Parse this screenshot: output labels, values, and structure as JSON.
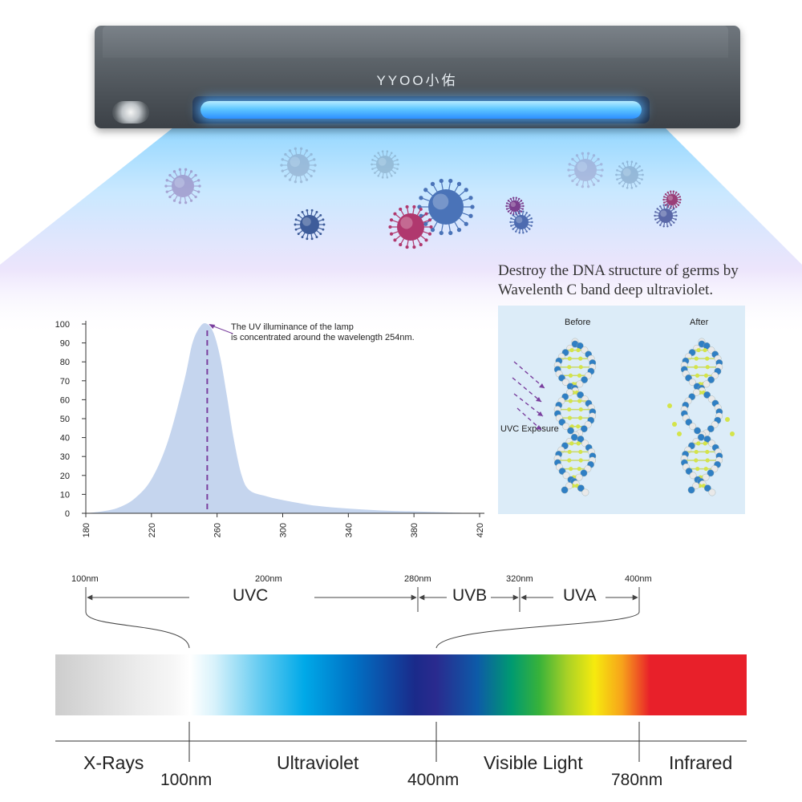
{
  "lamp": {
    "brand": "YYOO小佑"
  },
  "description": {
    "line1": "Destroy the DNA structure of germs by",
    "line2": "Wavelenth C band deep ultraviolet."
  },
  "chart_data": {
    "type": "area",
    "title": "",
    "xlabel": "",
    "ylabel": "",
    "xlim": [
      180,
      420
    ],
    "ylim": [
      0,
      100
    ],
    "x_ticks": [
      180,
      220,
      260,
      300,
      340,
      380,
      420
    ],
    "y_ticks": [
      0,
      10,
      20,
      30,
      40,
      50,
      60,
      70,
      80,
      90,
      100
    ],
    "x": [
      180,
      190,
      200,
      210,
      220,
      230,
      240,
      245,
      250,
      254,
      258,
      262,
      266,
      270,
      275,
      280,
      290,
      300,
      320,
      340,
      360,
      380,
      400,
      420
    ],
    "y": [
      0,
      1,
      3,
      8,
      18,
      38,
      70,
      90,
      99,
      100,
      95,
      82,
      62,
      40,
      20,
      12,
      9,
      7,
      4,
      2.5,
      1.5,
      1,
      0.5,
      0
    ],
    "peak_marker_x": 254,
    "annotation_line1": "The UV illuminance of the lamp",
    "annotation_line2": "is concentrated around the wavelength 254nm.",
    "fill_color": "#c5d5ee",
    "marker_color": "#7a3f9e"
  },
  "dna": {
    "before_label": "Before",
    "after_label": "After",
    "exposure_label": "UVC Exposure"
  },
  "uv_bands": {
    "ticks": [
      "100nm",
      "200nm",
      "280nm",
      "320nm",
      "400nm"
    ],
    "uvc": "UVC",
    "uvb": "UVB",
    "uva": "UVA"
  },
  "spectrum": {
    "regions": [
      "X-Rays",
      "Ultraviolet",
      "Visible Light",
      "Infrared"
    ],
    "boundaries": [
      "100nm",
      "400nm",
      "780nm"
    ]
  }
}
